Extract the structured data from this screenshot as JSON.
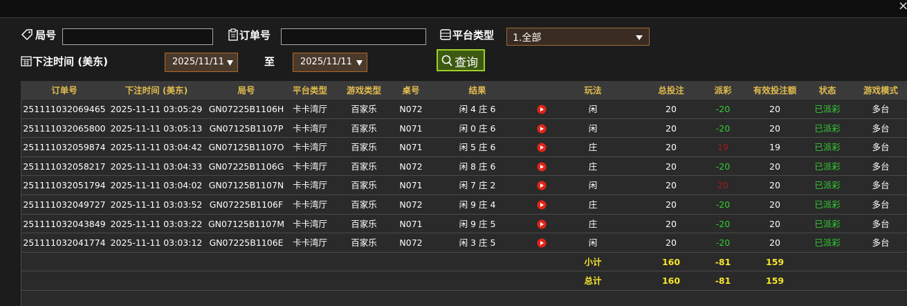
{
  "close": "×",
  "filters": {
    "round_label": "局号",
    "order_label": "订单号",
    "platform_label": "平台类型",
    "platform_value": "1.全部",
    "time_label": "下注时间 (美东)",
    "date_from": "2025/11/11",
    "to_label": "至",
    "date_to": "2025/11/11",
    "query": "查询"
  },
  "table": {
    "headers": [
      "订单号",
      "下注时间 (美东)",
      "局号",
      "平台类型",
      "游戏类型",
      "桌号",
      "结果",
      "玩法",
      "总投注",
      "派彩",
      "有效投注额",
      "状态",
      "游戏模式"
    ],
    "rows": [
      [
        "251111032069465",
        "2025-11-11 03:05:29",
        "GN07225B1106H",
        "卡卡湾厅",
        "百家乐",
        "N072",
        "闲 4 庄 6",
        "闲",
        20,
        -20,
        20,
        "已派彩",
        "多台"
      ],
      [
        "251111032065800",
        "2025-11-11 03:05:13",
        "GN07125B1107P",
        "卡卡湾厅",
        "百家乐",
        "N071",
        "闲 0 庄 6",
        "闲",
        20,
        -20,
        20,
        "已派彩",
        "多台"
      ],
      [
        "251111032059874",
        "2025-11-11 03:04:42",
        "GN07125B1107O",
        "卡卡湾厅",
        "百家乐",
        "N071",
        "闲 5 庄 6",
        "庄",
        20,
        19,
        19,
        "已派彩",
        "多台"
      ],
      [
        "251111032058217",
        "2025-11-11 03:04:33",
        "GN07225B1106G",
        "卡卡湾厅",
        "百家乐",
        "N072",
        "闲 8 庄 6",
        "庄",
        20,
        -20,
        20,
        "已派彩",
        "多台"
      ],
      [
        "251111032051794",
        "2025-11-11 03:04:02",
        "GN07125B1107N",
        "卡卡湾厅",
        "百家乐",
        "N071",
        "闲 7 庄 2",
        "闲",
        20,
        20,
        20,
        "已派彩",
        "多台"
      ],
      [
        "251111032049727",
        "2025-11-11 03:03:52",
        "GN07225B1106F",
        "卡卡湾厅",
        "百家乐",
        "N072",
        "闲 9 庄 4",
        "庄",
        20,
        -20,
        20,
        "已派彩",
        "多台"
      ],
      [
        "251111032043849",
        "2025-11-11 03:03:22",
        "GN07125B1107M",
        "卡卡湾厅",
        "百家乐",
        "N071",
        "闲 9 庄 5",
        "庄",
        20,
        -20,
        20,
        "已派彩",
        "多台"
      ],
      [
        "251111032041774",
        "2025-11-11 03:03:12",
        "GN07225B1106E",
        "卡卡湾厅",
        "百家乐",
        "N072",
        "闲 3 庄 5",
        "闲",
        20,
        -20,
        20,
        "已派彩",
        "多台"
      ]
    ],
    "subtotal": {
      "label": "小计",
      "total_bet": 160,
      "payout": -81,
      "valid_bet": 159
    },
    "total": {
      "label": "总计",
      "total_bet": 160,
      "payout": -81,
      "valid_bet": 159
    }
  }
}
